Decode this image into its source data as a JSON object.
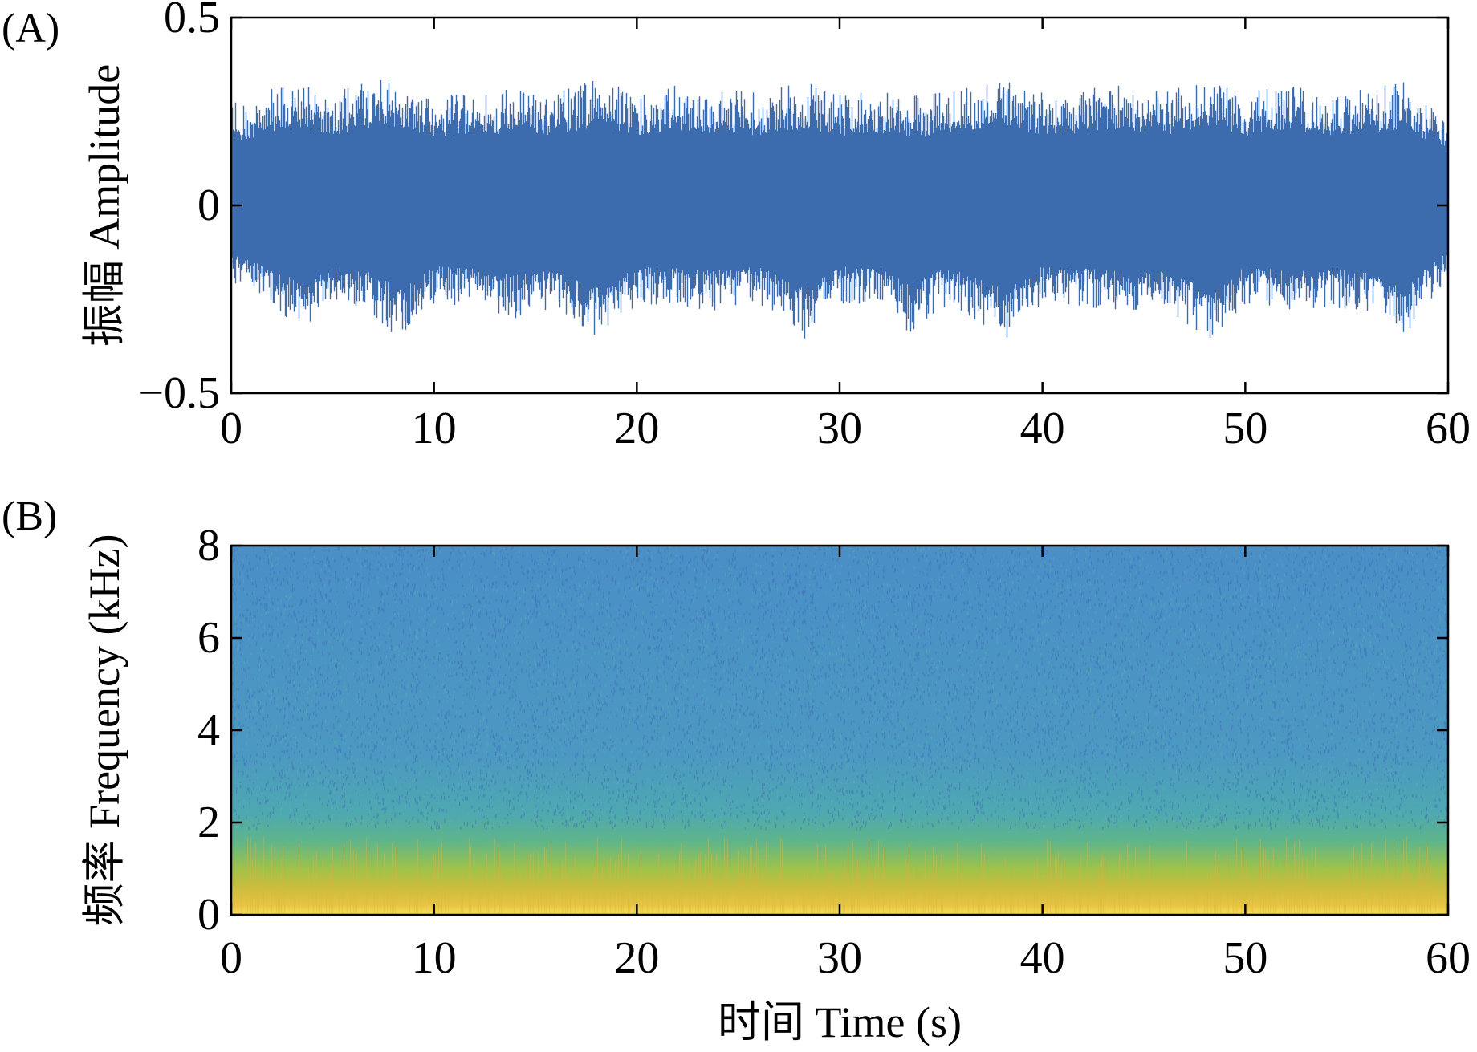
{
  "chart_data": [
    {
      "panel_label": "(A)",
      "type": "line",
      "ylabel": "振幅 Amplitude",
      "xlabel": "",
      "xlim": [
        0,
        60
      ],
      "ylim": [
        -0.5,
        0.5
      ],
      "xticks": [
        0,
        10,
        20,
        30,
        40,
        50,
        60
      ],
      "yticks": [
        "−0.5",
        "0",
        "0.5"
      ],
      "ytick_values": [
        -0.5,
        0,
        0.5
      ],
      "grid": false,
      "series_color": "#3c6bae",
      "envelope": {
        "time": [
          0,
          2,
          3.5,
          5,
          6.8,
          8.3,
          10,
          12,
          14,
          16,
          18.3,
          20,
          22,
          24,
          26,
          28.3,
          30,
          32,
          33.4,
          35,
          36,
          38.2,
          40,
          42,
          44,
          46,
          48.2,
          50,
          52,
          54,
          56,
          57.8,
          59.5,
          60
        ],
        "upper": [
          0.27,
          0.31,
          0.32,
          0.3,
          0.33,
          0.34,
          0.29,
          0.3,
          0.31,
          0.3,
          0.34,
          0.3,
          0.32,
          0.31,
          0.3,
          0.33,
          0.3,
          0.31,
          0.29,
          0.3,
          0.31,
          0.33,
          0.3,
          0.31,
          0.32,
          0.3,
          0.34,
          0.3,
          0.32,
          0.3,
          0.31,
          0.33,
          0.25,
          0.23
        ],
        "lower": [
          -0.21,
          -0.26,
          -0.34,
          -0.26,
          -0.28,
          -0.36,
          -0.26,
          -0.27,
          -0.3,
          -0.27,
          -0.36,
          -0.26,
          -0.27,
          -0.28,
          -0.26,
          -0.36,
          -0.26,
          -0.27,
          -0.34,
          -0.27,
          -0.28,
          -0.36,
          -0.26,
          -0.27,
          -0.28,
          -0.27,
          -0.36,
          -0.26,
          -0.28,
          -0.27,
          -0.28,
          -0.36,
          -0.22,
          -0.21
        ]
      }
    },
    {
      "panel_label": "(B)",
      "type": "heatmap",
      "ylabel": "频率 Frequency (kHz)",
      "xlabel": "时间 Time (s)",
      "xlim": [
        0,
        60
      ],
      "ylim": [
        0,
        8
      ],
      "xticks": [
        0,
        10,
        20,
        30,
        40,
        50,
        60
      ],
      "yticks": [
        0,
        2,
        4,
        6,
        8
      ],
      "grid": false,
      "colormap_by_frequency_khz": [
        {
          "f": 0.0,
          "color": "#f7e15a"
        },
        {
          "f": 0.2,
          "color": "#e9c443"
        },
        {
          "f": 0.6,
          "color": "#c9bd3c"
        },
        {
          "f": 1.0,
          "color": "#9ec24a"
        },
        {
          "f": 1.6,
          "color": "#5fb58a"
        },
        {
          "f": 2.2,
          "color": "#4ea8b0"
        },
        {
          "f": 3.5,
          "color": "#4b98c2"
        },
        {
          "f": 8.0,
          "color": "#4a8fc6"
        }
      ],
      "speckle_color": "#3f65b8"
    }
  ]
}
